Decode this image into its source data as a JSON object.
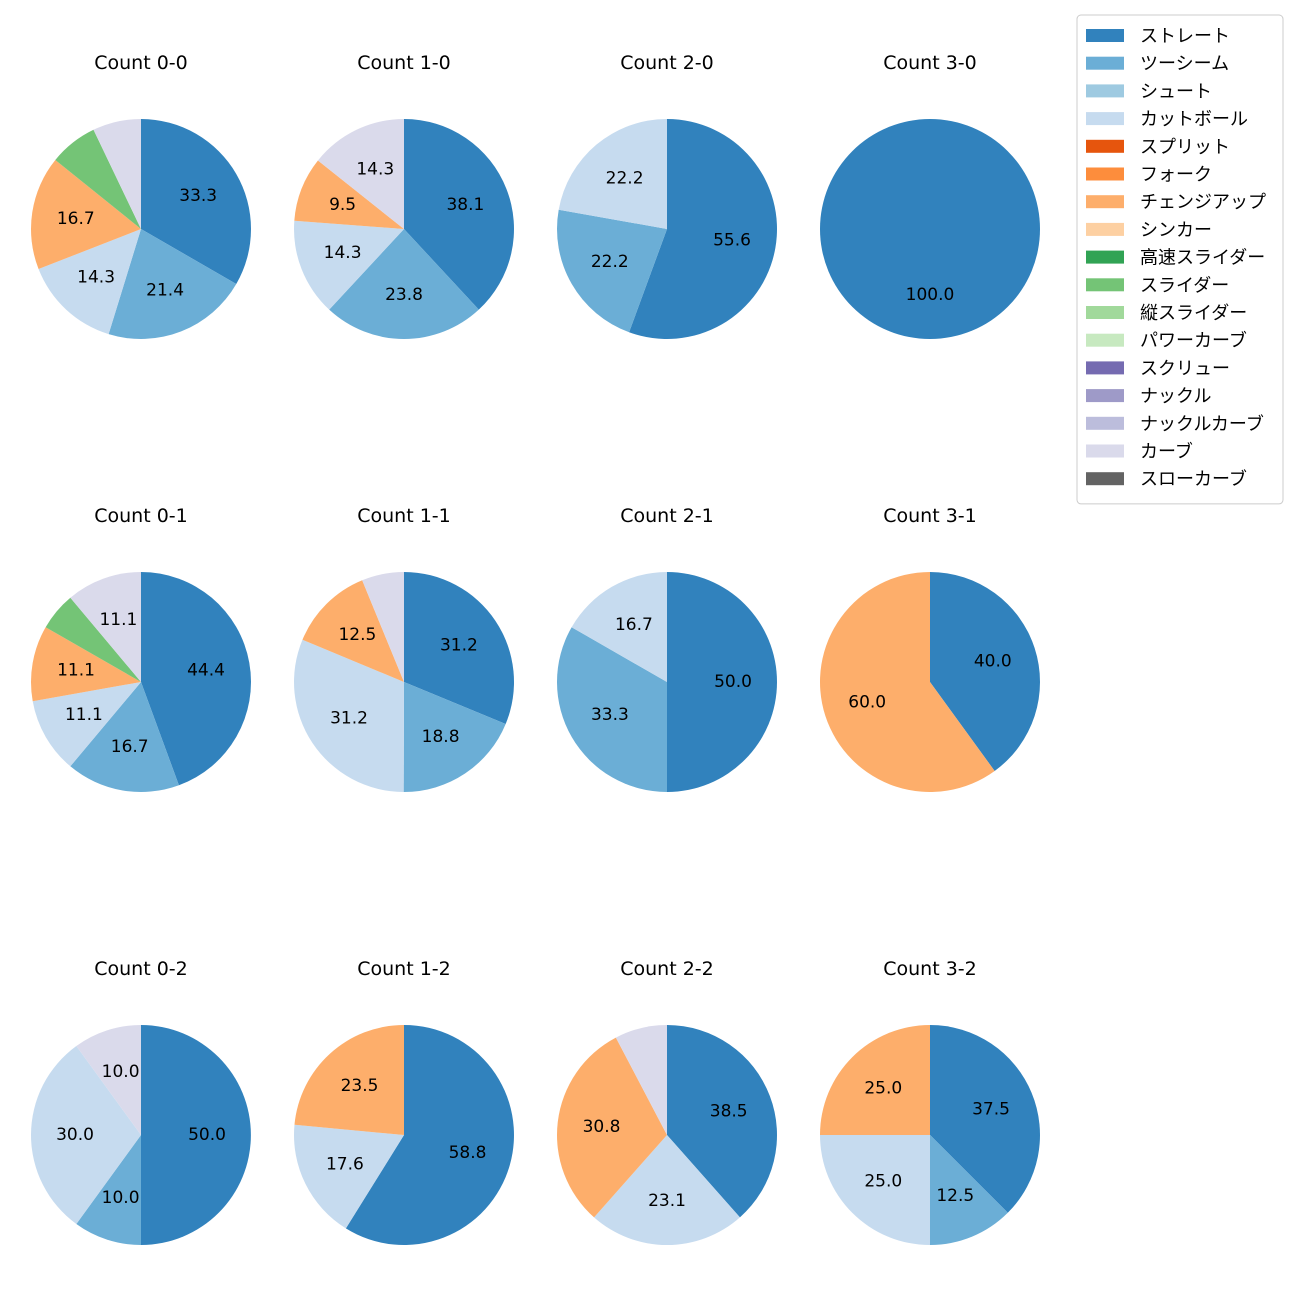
{
  "chart_data": {
    "type": "pie",
    "legend": {
      "placement": "top-right",
      "entries": [
        {
          "name": "ストレート",
          "color": "#3182bd"
        },
        {
          "name": "ツーシーム",
          "color": "#6baed6"
        },
        {
          "name": "シュート",
          "color": "#9ecae1"
        },
        {
          "name": "カットボール",
          "color": "#c6dbef"
        },
        {
          "name": "スプリット",
          "color": "#e6550d"
        },
        {
          "name": "フォーク",
          "color": "#fd8d3c"
        },
        {
          "name": "チェンジアップ",
          "color": "#fdae6b"
        },
        {
          "name": "シンカー",
          "color": "#fdd0a2"
        },
        {
          "name": "高速スライダー",
          "color": "#31a354"
        },
        {
          "name": "スライダー",
          "color": "#74c476"
        },
        {
          "name": "縦スライダー",
          "color": "#a1d99b"
        },
        {
          "name": "パワーカーブ",
          "color": "#c7e9c0"
        },
        {
          "name": "スクリュー",
          "color": "#756bb1"
        },
        {
          "name": "ナックル",
          "color": "#9e9ac8"
        },
        {
          "name": "ナックルカーブ",
          "color": "#bcbddc"
        },
        {
          "name": "カーブ",
          "color": "#dadaeb"
        },
        {
          "name": "スローカーブ",
          "color": "#636363"
        }
      ]
    },
    "charts": [
      {
        "title": "Count 0-0",
        "slices": [
          {
            "pitch": "ストレート",
            "value": 33.3,
            "label": "33.3"
          },
          {
            "pitch": "ツーシーム",
            "value": 21.4,
            "label": "21.4"
          },
          {
            "pitch": "カットボール",
            "value": 14.3,
            "label": "14.3"
          },
          {
            "pitch": "チェンジアップ",
            "value": 16.7,
            "label": "16.7"
          },
          {
            "pitch": "スライダー",
            "value": 7.1,
            "label": ""
          },
          {
            "pitch": "カーブ",
            "value": 7.1,
            "label": ""
          }
        ]
      },
      {
        "title": "Count 1-0",
        "slices": [
          {
            "pitch": "ストレート",
            "value": 38.1,
            "label": "38.1"
          },
          {
            "pitch": "ツーシーム",
            "value": 23.8,
            "label": "23.8"
          },
          {
            "pitch": "カットボール",
            "value": 14.3,
            "label": "14.3"
          },
          {
            "pitch": "チェンジアップ",
            "value": 9.5,
            "label": "9.5"
          },
          {
            "pitch": "カーブ",
            "value": 14.3,
            "label": "14.3"
          }
        ]
      },
      {
        "title": "Count 2-0",
        "slices": [
          {
            "pitch": "ストレート",
            "value": 55.6,
            "label": "55.6"
          },
          {
            "pitch": "ツーシーム",
            "value": 22.2,
            "label": "22.2"
          },
          {
            "pitch": "カットボール",
            "value": 22.2,
            "label": "22.2"
          }
        ]
      },
      {
        "title": "Count 3-0",
        "slices": [
          {
            "pitch": "ストレート",
            "value": 100.0,
            "label": "100.0"
          }
        ]
      },
      {
        "title": "Count 0-1",
        "slices": [
          {
            "pitch": "ストレート",
            "value": 44.4,
            "label": "44.4"
          },
          {
            "pitch": "ツーシーム",
            "value": 16.7,
            "label": "16.7"
          },
          {
            "pitch": "カットボール",
            "value": 11.1,
            "label": "11.1"
          },
          {
            "pitch": "チェンジアップ",
            "value": 11.1,
            "label": "11.1"
          },
          {
            "pitch": "スライダー",
            "value": 5.6,
            "label": ""
          },
          {
            "pitch": "カーブ",
            "value": 11.1,
            "label": "11.1"
          }
        ]
      },
      {
        "title": "Count 1-1",
        "slices": [
          {
            "pitch": "ストレート",
            "value": 31.2,
            "label": "31.2"
          },
          {
            "pitch": "ツーシーム",
            "value": 18.8,
            "label": "18.8"
          },
          {
            "pitch": "カットボール",
            "value": 31.2,
            "label": "31.2"
          },
          {
            "pitch": "チェンジアップ",
            "value": 12.5,
            "label": "12.5"
          },
          {
            "pitch": "カーブ",
            "value": 6.2,
            "label": ""
          }
        ]
      },
      {
        "title": "Count 2-1",
        "slices": [
          {
            "pitch": "ストレート",
            "value": 50.0,
            "label": "50.0"
          },
          {
            "pitch": "ツーシーム",
            "value": 33.3,
            "label": "33.3"
          },
          {
            "pitch": "カットボール",
            "value": 16.7,
            "label": "16.7"
          }
        ]
      },
      {
        "title": "Count 3-1",
        "slices": [
          {
            "pitch": "ストレート",
            "value": 40.0,
            "label": "40.0"
          },
          {
            "pitch": "チェンジアップ",
            "value": 60.0,
            "label": "60.0"
          }
        ]
      },
      {
        "title": "Count 0-2",
        "slices": [
          {
            "pitch": "ストレート",
            "value": 50.0,
            "label": "50.0"
          },
          {
            "pitch": "ツーシーム",
            "value": 10.0,
            "label": "10.0"
          },
          {
            "pitch": "カットボール",
            "value": 30.0,
            "label": "30.0"
          },
          {
            "pitch": "カーブ",
            "value": 10.0,
            "label": "10.0"
          }
        ]
      },
      {
        "title": "Count 1-2",
        "slices": [
          {
            "pitch": "ストレート",
            "value": 58.8,
            "label": "58.8"
          },
          {
            "pitch": "カットボール",
            "value": 17.6,
            "label": "17.6"
          },
          {
            "pitch": "チェンジアップ",
            "value": 23.5,
            "label": "23.5"
          }
        ]
      },
      {
        "title": "Count 2-2",
        "slices": [
          {
            "pitch": "ストレート",
            "value": 38.5,
            "label": "38.5"
          },
          {
            "pitch": "カットボール",
            "value": 23.1,
            "label": "23.1"
          },
          {
            "pitch": "チェンジアップ",
            "value": 30.8,
            "label": "30.8"
          },
          {
            "pitch": "カーブ",
            "value": 7.7,
            "label": ""
          }
        ]
      },
      {
        "title": "Count 3-2",
        "slices": [
          {
            "pitch": "ストレート",
            "value": 37.5,
            "label": "37.5"
          },
          {
            "pitch": "ツーシーム",
            "value": 12.5,
            "label": "12.5"
          },
          {
            "pitch": "カットボール",
            "value": 25.0,
            "label": "25.0"
          },
          {
            "pitch": "チェンジアップ",
            "value": 25.0,
            "label": "25.0"
          }
        ]
      }
    ]
  }
}
